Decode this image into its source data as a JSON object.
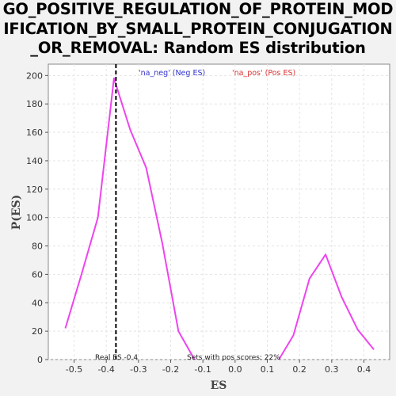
{
  "chart_data": {
    "type": "line",
    "title_lines": [
      "GO_POSITIVE_REGULATION_OF_PROTEIN_MOD",
      "IFICATION_BY_SMALL_PROTEIN_CONJUGATION",
      "_OR_REMOVAL: Random ES distribution"
    ],
    "xlabel": "ES",
    "ylabel": "P(ES)",
    "xlim": [
      -0.58,
      0.48
    ],
    "ylim": [
      0,
      208
    ],
    "x_ticks": [
      -0.5,
      -0.4,
      -0.3,
      -0.2,
      -0.1,
      0.0,
      0.1,
      0.2,
      0.3,
      0.4
    ],
    "x_tick_labels": [
      "-0.5",
      "-0.4",
      "-0.3",
      "-0.2",
      "-0.1",
      "0.0",
      "0.1",
      "0.2",
      "0.3",
      "0.4"
    ],
    "y_ticks": [
      0,
      20,
      40,
      60,
      80,
      100,
      120,
      140,
      160,
      180,
      200
    ],
    "y_tick_labels": [
      "0",
      "20",
      "40",
      "60",
      "80",
      "100",
      "120",
      "140",
      "160",
      "180",
      "200"
    ],
    "grid": true,
    "series": [
      {
        "name": "neg",
        "color": "#ee44ee",
        "x": [
          -0.527,
          -0.477,
          -0.426,
          -0.376,
          -0.326,
          -0.276,
          -0.226,
          -0.176,
          -0.126
        ],
        "y": [
          22,
          60,
          100,
          198,
          162,
          135,
          82,
          20,
          0
        ]
      },
      {
        "name": "pos",
        "color": "#ee44ee",
        "x": [
          0.136,
          0.181,
          0.231,
          0.281,
          0.331,
          0.381,
          0.431
        ],
        "y": [
          0,
          17,
          57,
          74,
          44,
          21,
          7
        ]
      }
    ],
    "legend": [
      {
        "text": "'na_neg' (Neg ES)",
        "color": "#3333cc"
      },
      {
        "text": "'na_pos' (Pos ES)",
        "color": "#dd3333"
      }
    ],
    "real_es_line": {
      "x": -0.37,
      "style": "dashed",
      "color": "#000000"
    },
    "annotations": {
      "real_es": "Real ES -0.4",
      "pos_scores": "Sets with pos scores: 22%"
    }
  }
}
